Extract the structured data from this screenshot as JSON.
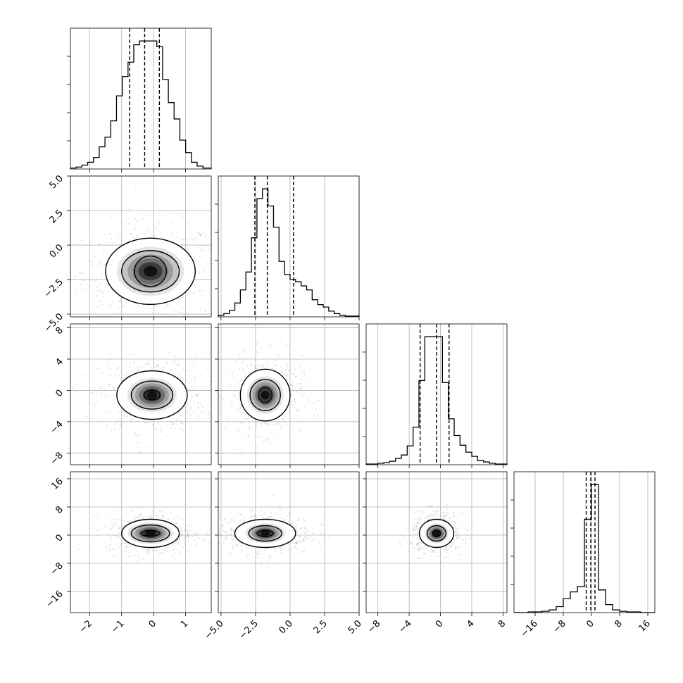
{
  "chart_data": {
    "type": "corner",
    "title": "",
    "variables": [
      {
        "name": "",
        "lim": [
          -2.6,
          1.8
        ],
        "ticks": [
          -2,
          -1,
          0,
          1
        ],
        "tick_labels": [
          "−2",
          "−1",
          "0",
          "1"
        ],
        "quantiles": [
          -0.75,
          -0.28,
          0.18
        ]
      },
      {
        "name": "",
        "lim": [
          -5.2,
          5.0
        ],
        "ticks": [
          -5,
          -2.5,
          0,
          2.5,
          5
        ],
        "tick_labels": [
          "−5.0",
          "−2.5",
          "0.0",
          "2.5",
          "5.0"
        ],
        "quantiles": [
          -2.55,
          -1.65,
          0.25
        ]
      },
      {
        "name": "",
        "lim": [
          -9.5,
          8.5
        ],
        "ticks": [
          -8,
          -4,
          0,
          4,
          8
        ],
        "tick_labels": [
          "−8",
          "−4",
          "0",
          "4",
          "8"
        ],
        "quantiles": [
          -2.6,
          -0.5,
          1.1
        ]
      },
      {
        "name": "",
        "lim": [
          -22.0,
          18.0
        ],
        "ticks": [
          -16,
          -8,
          0,
          8,
          16
        ],
        "tick_labels": [
          "−16",
          "−8",
          "0",
          "8",
          "16"
        ],
        "quantiles": [
          -1.5,
          -0.2,
          1.0
        ]
      }
    ],
    "histograms": [
      {
        "variable": 0,
        "edges": [
          -2.6,
          -2.42,
          -2.24,
          -2.06,
          -1.88,
          -1.7,
          -1.52,
          -1.34,
          -1.16,
          -0.98,
          -0.8,
          -0.62,
          -0.44,
          -0.26,
          -0.08,
          0.1,
          0.28,
          0.46,
          0.64,
          0.82,
          1.0,
          1.18,
          1.36,
          1.54,
          1.8
        ],
        "counts": [
          1,
          2,
          4,
          7,
          12,
          23,
          33,
          50,
          76,
          96,
          111,
          129,
          133,
          133,
          133,
          127,
          93,
          69,
          52,
          30,
          17,
          7,
          3,
          1
        ]
      },
      {
        "variable": 1,
        "edges": [
          -5.2,
          -4.8,
          -4.4,
          -4.0,
          -3.6,
          -3.2,
          -2.8,
          -2.4,
          -2.0,
          -1.6,
          -1.2,
          -0.8,
          -0.4,
          0.0,
          0.4,
          0.8,
          1.2,
          1.6,
          2.0,
          2.4,
          2.8,
          3.2,
          3.6,
          4.0,
          5.0
        ],
        "counts": [
          2,
          4,
          8,
          17,
          33,
          55,
          97,
          145,
          157,
          136,
          110,
          68,
          52,
          46,
          43,
          38,
          33,
          21,
          15,
          12,
          7,
          4,
          2,
          1
        ]
      },
      {
        "variable": 2,
        "edges": [
          -9.5,
          -8.75,
          -8.0,
          -7.25,
          -6.5,
          -5.75,
          -5.0,
          -4.25,
          -3.5,
          -2.75,
          -2.0,
          -1.25,
          -0.5,
          0.25,
          1.0,
          1.75,
          2.5,
          3.25,
          4.0,
          4.75,
          5.5,
          6.25,
          7.0,
          7.75,
          8.5
        ],
        "counts": [
          1,
          1,
          2,
          3,
          5,
          9,
          14,
          27,
          54,
          121,
          184,
          184,
          184,
          118,
          66,
          42,
          28,
          18,
          12,
          6,
          4,
          2,
          1,
          1
        ]
      },
      {
        "variable": 3,
        "edges": [
          -22,
          -20,
          -18,
          -16,
          -14,
          -12,
          -10,
          -8,
          -6,
          -4,
          -2,
          0,
          2,
          4,
          6,
          8,
          10,
          12,
          14,
          16,
          18
        ],
        "counts": [
          0,
          0,
          1,
          1,
          2,
          4,
          9,
          21,
          31,
          39,
          140,
          192,
          34,
          12,
          4,
          2,
          1,
          1,
          0,
          0
        ]
      }
    ],
    "pairs": [
      {
        "x": 0,
        "y": 1,
        "center": [
          -0.1,
          -1.9
        ],
        "contour_radii": [
          [
            0.5,
            1.1
          ],
          [
            0.9,
            1.5
          ],
          [
            1.4,
            2.4
          ]
        ]
      },
      {
        "x": 0,
        "y": 2,
        "center": [
          -0.05,
          -0.6
        ],
        "contour_radii": [
          [
            0.25,
            0.6
          ],
          [
            0.65,
            1.8
          ],
          [
            1.1,
            3.1
          ]
        ]
      },
      {
        "x": 1,
        "y": 2,
        "center": [
          -1.8,
          -0.6
        ],
        "contour_radii": [
          [
            0.5,
            1.0
          ],
          [
            1.1,
            2.0
          ],
          [
            1.8,
            3.3
          ]
        ]
      },
      {
        "x": 0,
        "y": 3,
        "center": [
          -0.1,
          0.5
        ],
        "contour_radii": [
          [
            0.3,
            0.8
          ],
          [
            0.6,
            2.4
          ],
          [
            0.9,
            4.0
          ]
        ]
      },
      {
        "x": 1,
        "y": 3,
        "center": [
          -1.8,
          0.5
        ],
        "contour_radii": [
          [
            0.6,
            0.9
          ],
          [
            1.2,
            2.2
          ],
          [
            2.2,
            4.0
          ]
        ]
      },
      {
        "x": 2,
        "y": 3,
        "center": [
          -0.5,
          0.5
        ],
        "contour_radii": [
          [
            0.5,
            0.9
          ],
          [
            1.2,
            2.2
          ],
          [
            2.2,
            4.0
          ]
        ]
      }
    ],
    "grid": true,
    "legend": "none"
  }
}
